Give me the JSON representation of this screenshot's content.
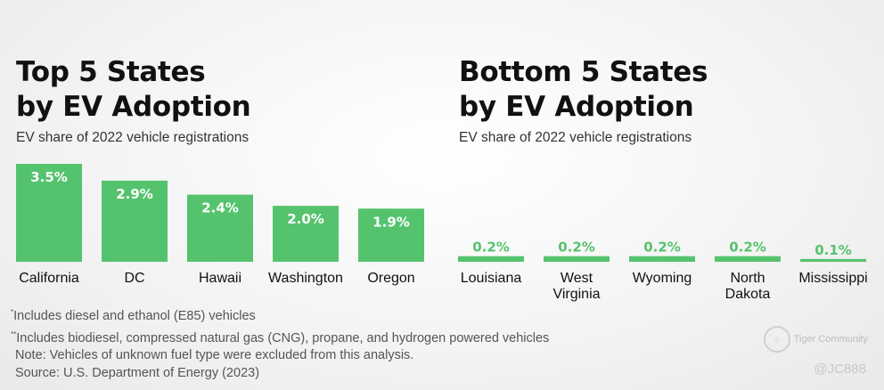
{
  "left": {
    "title": "Top 5 States\nby EV Adoption",
    "subtitle": "EV share of 2022 vehicle registrations"
  },
  "right": {
    "title": "Bottom 5 States\nby EV Adoption",
    "subtitle": "EV share of 2022 vehicle registrations"
  },
  "chart_data": [
    {
      "type": "bar",
      "title": "Top 5 States by EV Adoption",
      "subtitle": "EV share of 2022 vehicle registrations",
      "categories": [
        "California",
        "DC",
        "Hawaii",
        "Washington",
        "Oregon"
      ],
      "values": [
        3.5,
        2.9,
        2.4,
        2.0,
        1.9
      ],
      "labels": [
        "3.5%",
        "2.9%",
        "2.4%",
        "2.0%",
        "1.9%"
      ],
      "unit": "%",
      "ylim": [
        0,
        3.5
      ],
      "grid": false,
      "color": "#55c36d"
    },
    {
      "type": "bar",
      "title": "Bottom 5 States by EV Adoption",
      "subtitle": "EV share of 2022 vehicle registrations",
      "categories": [
        "Louisiana",
        "West Virginia",
        "Wyoming",
        "North Dakota",
        "Mississippi"
      ],
      "category_lines": [
        [
          "Louisiana"
        ],
        [
          "West",
          "Virginia"
        ],
        [
          "Wyoming"
        ],
        [
          "North",
          "Dakota"
        ],
        [
          "Mississippi"
        ]
      ],
      "values": [
        0.2,
        0.2,
        0.2,
        0.2,
        0.1
      ],
      "labels": [
        "0.2%",
        "0.2%",
        "0.2%",
        "0.2%",
        "0.1%"
      ],
      "unit": "%",
      "ylim": [
        0,
        3.5
      ],
      "grid": false,
      "color": "#55c36d"
    }
  ],
  "notes": {
    "line1_mark": "*",
    "line1": "Includes diesel and ethanol (E85) vehicles",
    "line2_mark": "**",
    "line2": "Includes biodiesel, compressed natural gas (CNG), propane, and hydrogen powered vehicles",
    "line3": "Note: Vehicles of unknown fuel type were excluded from this analysis.",
    "line4": "Source: U.S. Department of Energy (2023)"
  },
  "watermark": {
    "brand": "Tiger Community",
    "handle": "@JC888"
  }
}
